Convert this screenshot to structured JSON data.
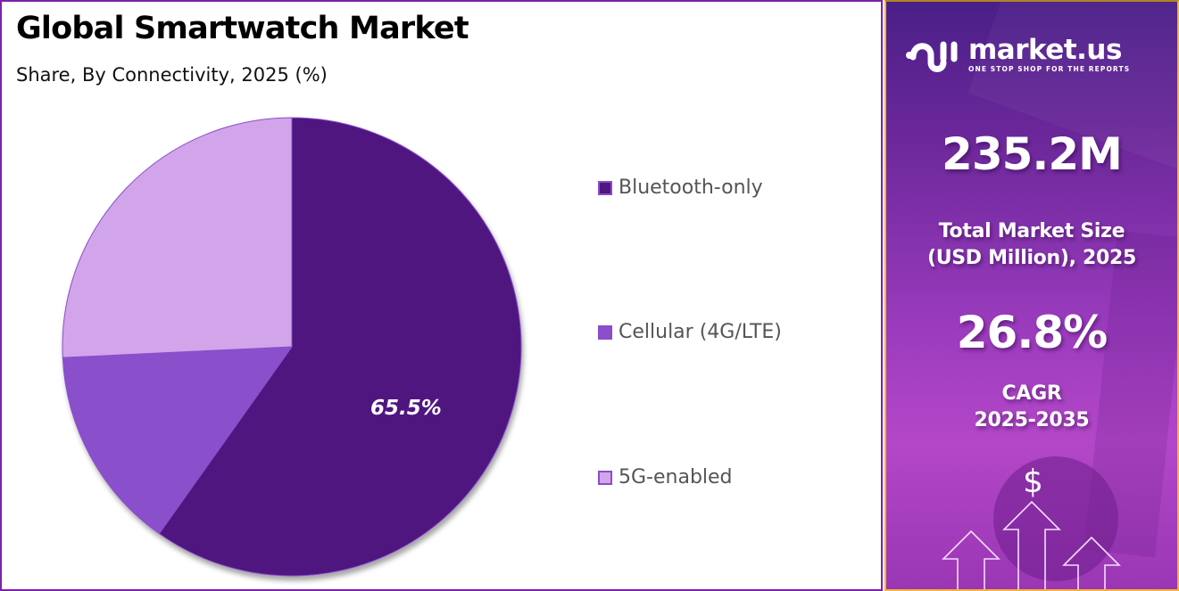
{
  "header": {
    "title": "Global Smartwatch Market",
    "subtitle": "Share, By Connectivity, 2025 (%)"
  },
  "chart_data": {
    "type": "pie",
    "title": "Global Smartwatch Market",
    "subtitle": "Share, By Connectivity, 2025 (%)",
    "categories": [
      "Bluetooth-only",
      "Cellular (4G/LTE)",
      "5G-enabled"
    ],
    "values": [
      65.5,
      15.8,
      28.2
    ],
    "value_notes": "Only Bluetooth-only is labeled (65.5%); other slice shares estimated from drawn slice angles",
    "colors": [
      "#4f1780",
      "#8a4fcb",
      "#d2a5ea"
    ],
    "data_labels": [
      {
        "category": "Bluetooth-only",
        "text": "65.5%"
      }
    ],
    "start_angle": "12 o'clock, clockwise",
    "legend_position": "right"
  },
  "legend": {
    "items": [
      {
        "label": "Bluetooth-only",
        "color": "#4f1780"
      },
      {
        "label": "Cellular (4G/LTE)",
        "color": "#8a4fcb"
      },
      {
        "label": "5G-enabled",
        "color": "#d2a5ea"
      }
    ]
  },
  "pie": {
    "label": "65.5%"
  },
  "sidebar": {
    "brand": {
      "name": "market.us",
      "tagline": "ONE STOP SHOP FOR THE REPORTS"
    },
    "market_size": {
      "value": "235.2M",
      "caption_line1": "Total Market Size",
      "caption_line2": "(USD Million), 2025"
    },
    "cagr": {
      "value": "26.8%",
      "caption_line1": "CAGR",
      "caption_line2": "2025-2035"
    },
    "icon_symbol": "$"
  }
}
